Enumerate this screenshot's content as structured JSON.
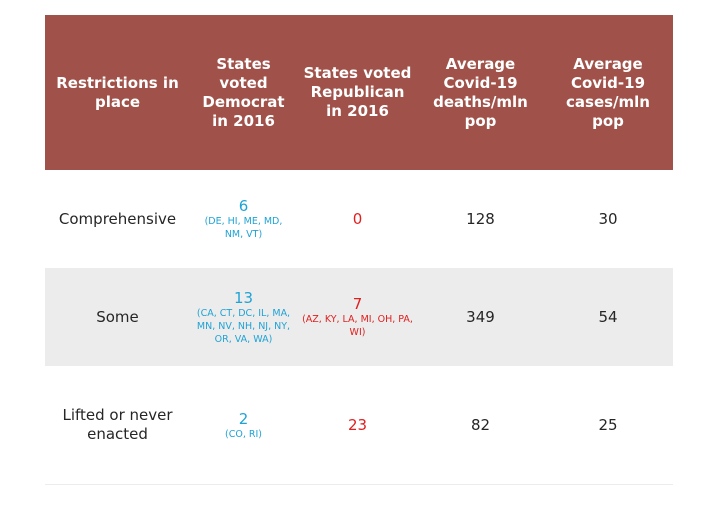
{
  "chart_data": {
    "type": "table",
    "colors": {
      "header_bg": "#a0524a",
      "header_text": "#ffffff",
      "democrat": "#1fa3d6",
      "republican": "#e01f1f",
      "alt_row_bg": "#ececec"
    },
    "columns": [
      "Restrictions in place",
      "States voted Democrat in 2016",
      "States voted Republican in 2016",
      "Average Covid-19 deaths/mln pop",
      "Average Covid-19 cases/mln pop"
    ],
    "rows": [
      {
        "restriction": "Comprehensive",
        "dem_count": "6",
        "dem_states": "(DE, HI, ME, MD, NM, VT)",
        "rep_count": "0",
        "rep_states": "",
        "deaths": "128",
        "cases": "30"
      },
      {
        "restriction": "Some",
        "dem_count": "13",
        "dem_states": "(CA, CT, DC, IL, MA, MN, NV, NH, NJ, NY, OR, VA, WA)",
        "rep_count": "7",
        "rep_states": "(AZ, KY, LA, MI, OH, PA, WI)",
        "deaths": "349",
        "cases": "54"
      },
      {
        "restriction": "Lifted or never enacted",
        "dem_count": "2",
        "dem_states": "(CO, RI)",
        "rep_count": "23",
        "rep_states": "",
        "deaths": "82",
        "cases": "25"
      }
    ]
  }
}
